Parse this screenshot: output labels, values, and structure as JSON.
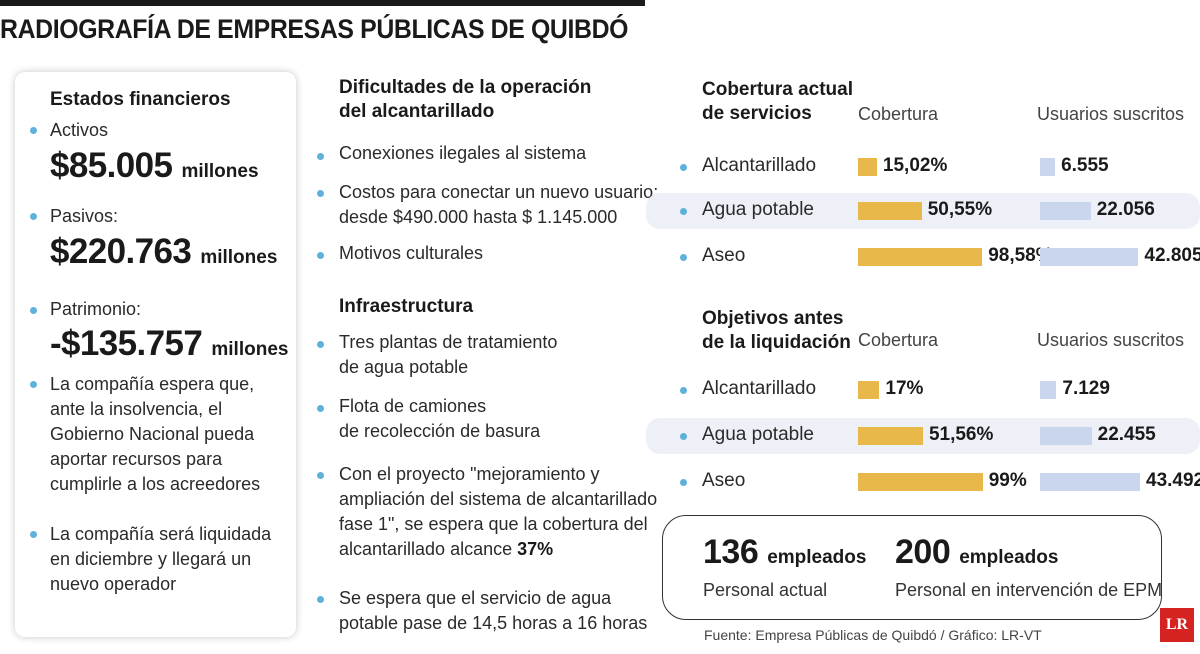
{
  "title": "RADIOGRAFÍA DE EMPRESAS PÚBLICAS DE QUIBDÓ",
  "financial": {
    "heading": "Estados financieros",
    "items": [
      {
        "label": "Activos",
        "value": "$85.005",
        "unit": "millones"
      },
      {
        "label": "Pasivos:",
        "value": "$220.763",
        "unit": "millones"
      },
      {
        "label": "Patrimonio:",
        "value": "-$135.757",
        "unit": "millones"
      }
    ],
    "notes": [
      [
        "La compañía espera que,",
        "ante la insolvencia, el",
        "Gobierno Nacional pueda",
        "aportar recursos para",
        "cumplirle a los acreedores"
      ],
      [
        "La compañía será liquidada",
        "en diciembre y llegará un",
        "nuevo operador"
      ]
    ]
  },
  "difficulties": {
    "heading": [
      "Dificultades de la operación",
      "del alcantarillado"
    ],
    "items": [
      [
        "Conexiones ilegales al sistema"
      ],
      [
        "Costos para conectar un nuevo usuario:",
        "desde  $490.000 hasta $ 1.145.000"
      ],
      [
        "Motivos culturales"
      ]
    ]
  },
  "infrastructure": {
    "heading": "Infraestructura",
    "items": [
      [
        "Tres plantas de tratamiento",
        "de agua potable"
      ],
      [
        "Flota de camiones",
        "de recolección de basura"
      ]
    ],
    "project_lines": [
      "Con el proyecto \"mejoramiento y",
      "ampliación del sistema de alcantarillado",
      "fase 1\", se espera que la cobertura del"
    ],
    "project_last": "alcantarillado alcance ",
    "project_value": "37%",
    "water_lines": [
      "Se espera que el servicio de agua",
      "potable pase de 14,5 horas a 16 horas"
    ]
  },
  "chart_data": [
    {
      "type": "bar",
      "title": [
        "Cobertura actual",
        "de servicios"
      ],
      "categories": [
        "Alcantarillado",
        "Agua potable",
        "Aseo"
      ],
      "series": [
        {
          "name": "Cobertura",
          "values": [
            15.02,
            50.55,
            98.58
          ],
          "labels": [
            "15,02%",
            "50,55%",
            "98,58%"
          ],
          "max": 100
        },
        {
          "name": "Usuarios suscritos",
          "values": [
            6555,
            22056,
            42805
          ],
          "labels": [
            "6.555",
            "22.056",
            "42.805"
          ],
          "max": 43492
        }
      ]
    },
    {
      "type": "bar",
      "title": [
        "Objetivos antes",
        "de la liquidación"
      ],
      "categories": [
        "Alcantarillado",
        "Agua potable",
        "Aseo"
      ],
      "series": [
        {
          "name": "Cobertura",
          "values": [
            17,
            51.56,
            99
          ],
          "labels": [
            "17%",
            "51,56%",
            "99%"
          ],
          "max": 100
        },
        {
          "name": "Usuarios suscritos",
          "values": [
            7129,
            22455,
            43492
          ],
          "labels": [
            "7.129",
            "22.455",
            "43.492"
          ],
          "max": 43492
        }
      ]
    }
  ],
  "employees": [
    {
      "number": "136",
      "unit": "empleados",
      "label": "Personal actual"
    },
    {
      "number": "200",
      "unit": "empleados",
      "label": "Personal en intervención de EPM"
    }
  ],
  "source": "Fuente: Empresa Públicas de Quibdó / Gráfico: LR-VT",
  "logo": "LR",
  "colors": {
    "coverage_bar": "#e8b84b",
    "users_bar": "#c9d6ee",
    "bullet": "#5fb1da",
    "band": "#eef0f8",
    "logo": "#d42321"
  }
}
